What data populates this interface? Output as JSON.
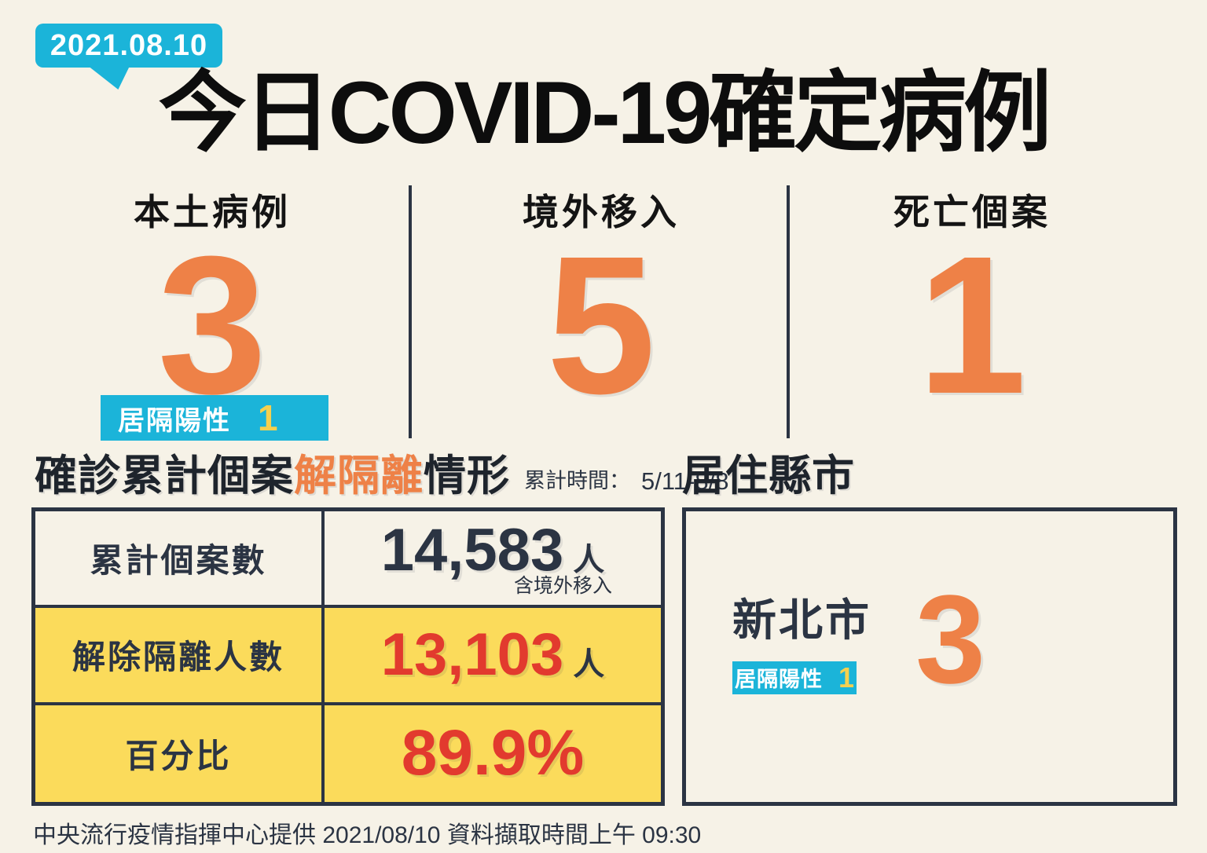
{
  "header": {
    "date_badge": "2021.08.10",
    "title": "今日COVID-19確定病例"
  },
  "stats": [
    {
      "label": "本土病例",
      "value": "3",
      "badge": {
        "label": "居隔陽性",
        "value": "1"
      }
    },
    {
      "label": "境外移入",
      "value": "5"
    },
    {
      "label": "死亡個案",
      "value": "1"
    }
  ],
  "isolation_section": {
    "title_prefix": "確診累計個案",
    "title_highlight": "解隔離",
    "title_suffix": "情形",
    "period_label": "累計時間：",
    "period_value": "5/11-8/8",
    "table": {
      "rows": [
        {
          "label": "累計個案數",
          "value": "14,583",
          "unit": "人",
          "note": "含境外移入"
        },
        {
          "label": "解除隔離人數",
          "value": "13,103",
          "unit": "人"
        },
        {
          "label": "百分比",
          "value": "89.9%"
        }
      ]
    }
  },
  "residence_section": {
    "title": "居住縣市",
    "city": "新北市",
    "badge": {
      "label": "居隔陽性",
      "value": "1"
    },
    "count": "3"
  },
  "footer": {
    "text": "中央流行疫情指揮中心提供 2021/08/10 資料擷取時間上午 09:30"
  },
  "colors": {
    "background": "#F6F2E7",
    "accent_orange": "#EE8147",
    "accent_cyan": "#1BB4D9",
    "accent_red": "#E23A2E",
    "row_yellow": "#FBDB5B",
    "badge_number_yellow": "#F5D04F",
    "dark_navy": "#2B3443",
    "title_black": "#0D0D0D"
  }
}
